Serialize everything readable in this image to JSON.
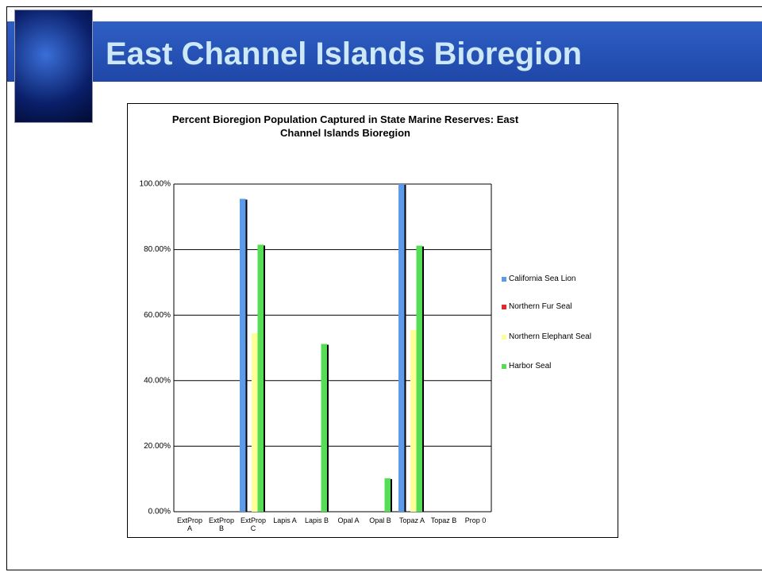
{
  "header": {
    "title": "East Channel Islands Bioregion"
  },
  "chart_data": {
    "type": "bar",
    "title": "Percent Bioregion Population Captured in State Marine Reserves: East Channel Islands Bioregion",
    "categories": [
      "ExtProp A",
      "ExtProp B",
      "ExtProp C",
      "Lapis A",
      "Lapis B",
      "Opal A",
      "Opal B",
      "Topaz A",
      "Topaz B",
      "Prop 0"
    ],
    "series": [
      {
        "name": "California Sea Lion",
        "color": "#5b9bea",
        "values": [
          0,
          0,
          95.5,
          0,
          0,
          0,
          0,
          100,
          0,
          0
        ]
      },
      {
        "name": "Northern Fur Seal",
        "color": "#dd2a2a",
        "values": [
          0,
          0,
          0,
          0,
          0,
          0,
          0,
          0,
          0,
          0
        ]
      },
      {
        "name": "Northern Elephant Seal",
        "color": "#ffff99",
        "values": [
          0,
          0,
          54.5,
          0,
          0,
          0,
          0,
          55.5,
          0,
          0
        ]
      },
      {
        "name": "Harbor Seal",
        "color": "#55dd55",
        "values": [
          0,
          0,
          81.5,
          0,
          51.2,
          0,
          10.2,
          81.2,
          0,
          0
        ]
      }
    ],
    "ylim": [
      0,
      100
    ],
    "yticks": [
      {
        "value": 0,
        "label": "0.00%"
      },
      {
        "value": 20,
        "label": "20.00%"
      },
      {
        "value": 40,
        "label": "40.00%"
      },
      {
        "value": 60,
        "label": "60.00%"
      },
      {
        "value": 80,
        "label": "80.00%"
      },
      {
        "value": 100,
        "label": "100.00%"
      }
    ],
    "grid": true,
    "legend": "right"
  }
}
